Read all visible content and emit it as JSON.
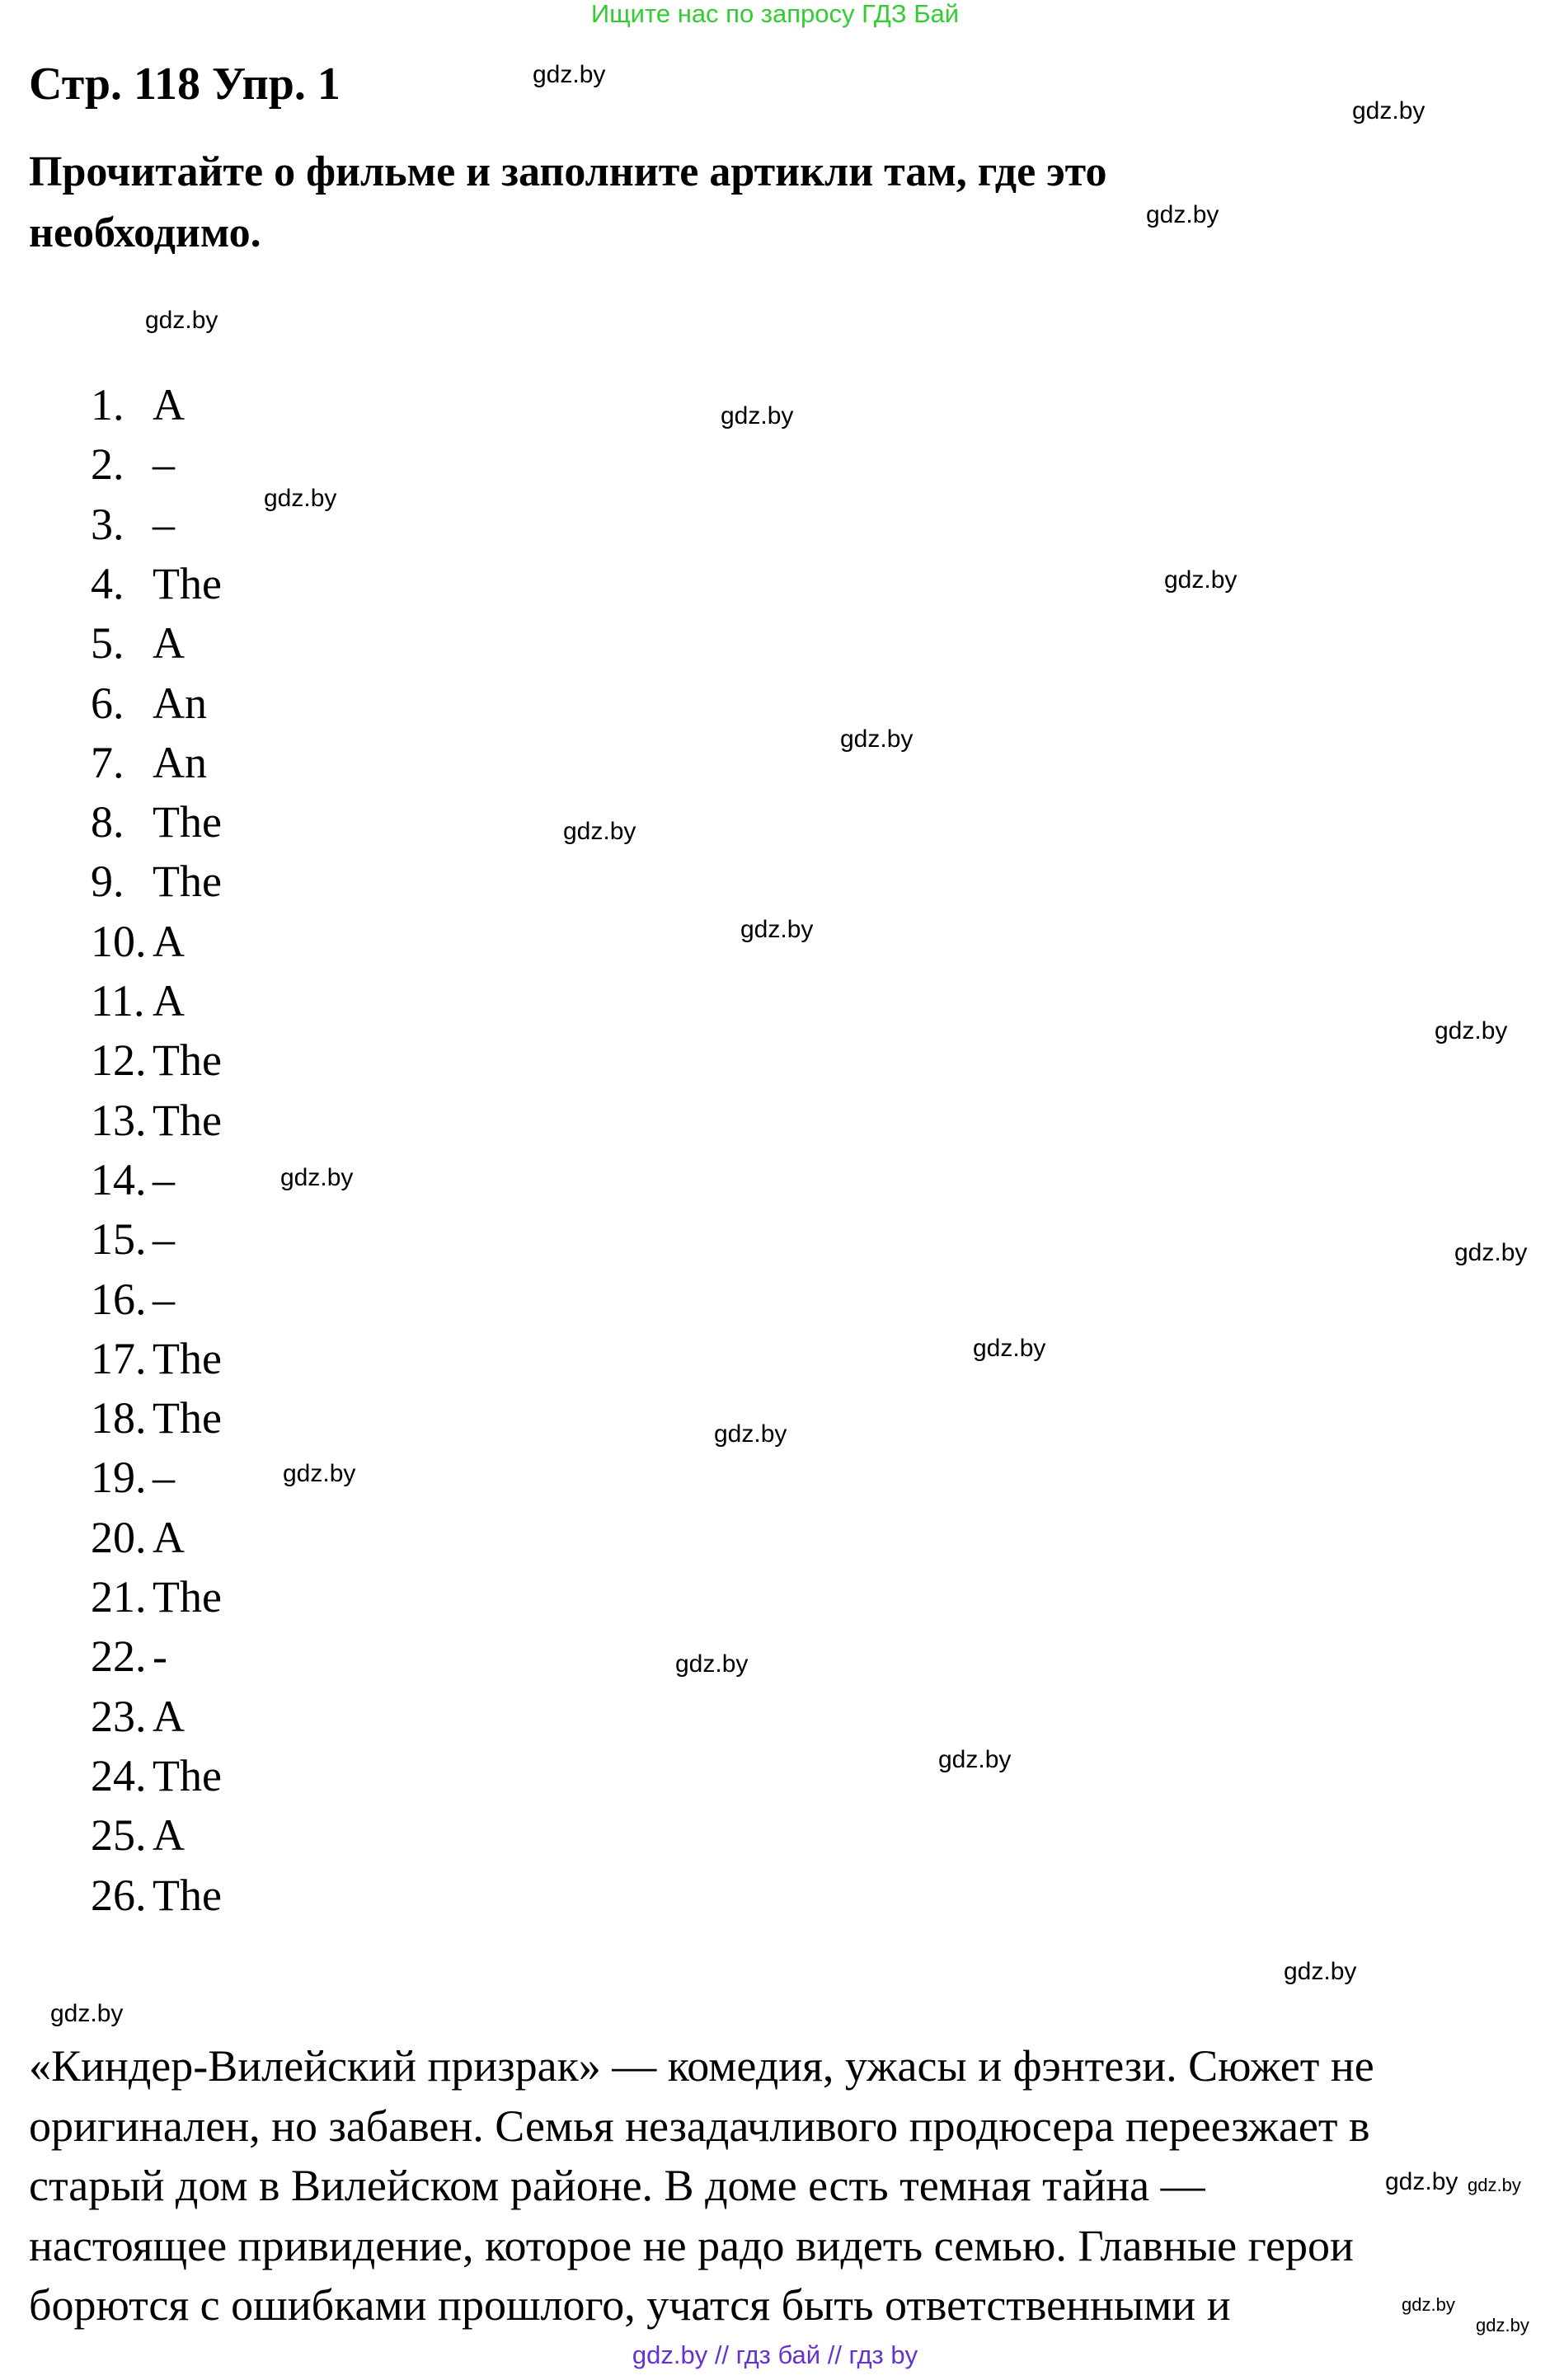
{
  "banner": "Ищите нас по запросу ГДЗ Бай",
  "title": "Стр. 118 Упр. 1",
  "instruction": [
    "Прочитайте о фильме и заполните артикли там, где это",
    "необходимо."
  ],
  "answers": [
    {
      "n": "1.",
      "a": "A"
    },
    {
      "n": "2.",
      "a": "–"
    },
    {
      "n": "3.",
      "a": "–"
    },
    {
      "n": "4.",
      "a": "The"
    },
    {
      "n": "5.",
      "a": "A"
    },
    {
      "n": "6.",
      "a": "An"
    },
    {
      "n": "7.",
      "a": "An"
    },
    {
      "n": "8.",
      "a": "The"
    },
    {
      "n": "9.",
      "a": "The"
    },
    {
      "n": "10.",
      "a": "A"
    },
    {
      "n": "11.",
      "a": "A"
    },
    {
      "n": "12.",
      "a": "The"
    },
    {
      "n": "13.",
      "a": "The"
    },
    {
      "n": "14.",
      "a": "–"
    },
    {
      "n": "15.",
      "a": "–"
    },
    {
      "n": "16.",
      "a": "–"
    },
    {
      "n": "17.",
      "a": "The"
    },
    {
      "n": "18.",
      "a": "The"
    },
    {
      "n": "19.",
      "a": "–"
    },
    {
      "n": "20.",
      "a": "A"
    },
    {
      "n": "21.",
      "a": "The"
    },
    {
      "n": "22.",
      "a": "-"
    },
    {
      "n": "23.",
      "a": "A"
    },
    {
      "n": "24.",
      "a": "The"
    },
    {
      "n": "25.",
      "a": "A"
    },
    {
      "n": "26.",
      "a": "The"
    }
  ],
  "paragraph": [
    "«Киндер-Вилейский призрак» — комедия, ужасы и фэнтези. Сюжет не",
    "оригинален, но забавен. Семья незадачливого продюсера переезжает в",
    "старый дом в Вилейском районе. В доме есть темная тайна —",
    "настоящее привидение, которое не радо видеть семью. Главные герои",
    "борются с ошибками прошлого, учатся быть ответственными и"
  ],
  "watermark": "gdz.by",
  "footer": "gdz.by  //  гдз бай  //  гдз by",
  "colors": {
    "banner": "#33cc33",
    "footer": "#6633cc"
  }
}
